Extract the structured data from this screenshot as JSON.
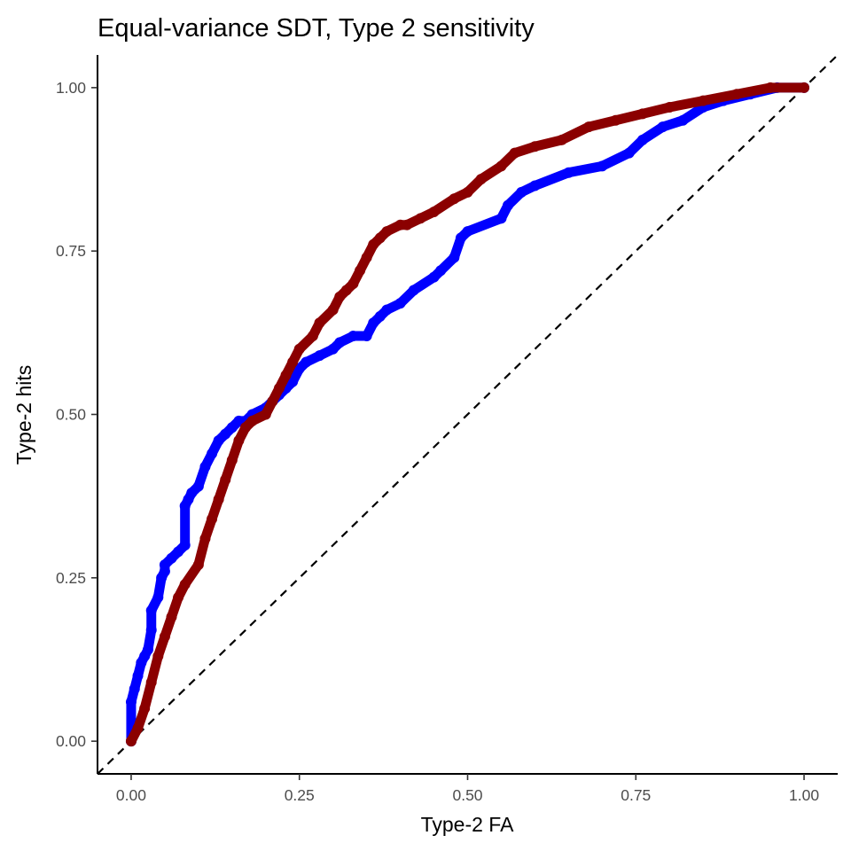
{
  "chart_data": {
    "type": "line",
    "title": "Equal-variance SDT, Type 2 sensitivity",
    "xlabel": "Type-2 FA",
    "ylabel": "Type-2 hits",
    "xlim": [
      -0.05,
      1.05
    ],
    "ylim": [
      -0.05,
      1.05
    ],
    "x_ticks": [
      0.0,
      0.25,
      0.5,
      0.75,
      1.0
    ],
    "x_tick_labels": [
      "0.00",
      "0.25",
      "0.50",
      "0.75",
      "1.00"
    ],
    "y_ticks": [
      0.0,
      0.25,
      0.5,
      0.75,
      1.0
    ],
    "y_tick_labels": [
      "0.00",
      "0.25",
      "0.50",
      "0.75",
      "1.00"
    ],
    "grid": false,
    "legend": "none",
    "reference_line": {
      "style": "dashed",
      "color": "#000000",
      "slope": 1,
      "intercept": 0
    },
    "series": [
      {
        "color": "#0000ff",
        "x": [
          0.0,
          0.0,
          0.005,
          0.01,
          0.015,
          0.02,
          0.025,
          0.03,
          0.03,
          0.04,
          0.045,
          0.05,
          0.05,
          0.06,
          0.07,
          0.08,
          0.08,
          0.085,
          0.09,
          0.1,
          0.11,
          0.12,
          0.13,
          0.14,
          0.15,
          0.16,
          0.17,
          0.18,
          0.2,
          0.21,
          0.22,
          0.23,
          0.24,
          0.25,
          0.26,
          0.28,
          0.3,
          0.31,
          0.33,
          0.35,
          0.36,
          0.37,
          0.38,
          0.4,
          0.42,
          0.45,
          0.46,
          0.48,
          0.49,
          0.5,
          0.55,
          0.56,
          0.58,
          0.6,
          0.65,
          0.7,
          0.74,
          0.76,
          0.79,
          0.82,
          0.85,
          0.88,
          0.92,
          0.96,
          1.0
        ],
        "y": [
          0.0,
          0.06,
          0.08,
          0.1,
          0.12,
          0.13,
          0.14,
          0.17,
          0.2,
          0.22,
          0.25,
          0.26,
          0.27,
          0.28,
          0.29,
          0.3,
          0.36,
          0.37,
          0.38,
          0.39,
          0.42,
          0.44,
          0.46,
          0.47,
          0.48,
          0.49,
          0.49,
          0.5,
          0.51,
          0.52,
          0.53,
          0.54,
          0.55,
          0.57,
          0.58,
          0.59,
          0.6,
          0.61,
          0.62,
          0.62,
          0.64,
          0.65,
          0.66,
          0.67,
          0.69,
          0.71,
          0.72,
          0.74,
          0.77,
          0.78,
          0.8,
          0.82,
          0.84,
          0.85,
          0.87,
          0.88,
          0.9,
          0.92,
          0.94,
          0.95,
          0.97,
          0.98,
          0.99,
          1.0,
          1.0
        ]
      },
      {
        "color": "#8b0000",
        "x": [
          0.0,
          0.01,
          0.02,
          0.03,
          0.04,
          0.05,
          0.06,
          0.07,
          0.08,
          0.1,
          0.11,
          0.12,
          0.13,
          0.14,
          0.15,
          0.16,
          0.17,
          0.18,
          0.2,
          0.21,
          0.22,
          0.23,
          0.24,
          0.25,
          0.27,
          0.28,
          0.3,
          0.31,
          0.32,
          0.33,
          0.34,
          0.35,
          0.36,
          0.37,
          0.38,
          0.4,
          0.41,
          0.43,
          0.45,
          0.48,
          0.5,
          0.52,
          0.55,
          0.57,
          0.6,
          0.64,
          0.68,
          0.72,
          0.76,
          0.8,
          0.85,
          0.9,
          0.95,
          1.0
        ],
        "y": [
          0.0,
          0.02,
          0.05,
          0.09,
          0.13,
          0.16,
          0.19,
          0.22,
          0.24,
          0.27,
          0.31,
          0.34,
          0.37,
          0.4,
          0.43,
          0.46,
          0.48,
          0.49,
          0.5,
          0.52,
          0.54,
          0.56,
          0.58,
          0.6,
          0.62,
          0.64,
          0.66,
          0.68,
          0.69,
          0.7,
          0.72,
          0.74,
          0.76,
          0.77,
          0.78,
          0.79,
          0.79,
          0.8,
          0.81,
          0.83,
          0.84,
          0.86,
          0.88,
          0.9,
          0.91,
          0.92,
          0.94,
          0.95,
          0.96,
          0.97,
          0.98,
          0.99,
          1.0,
          1.0
        ]
      }
    ]
  }
}
